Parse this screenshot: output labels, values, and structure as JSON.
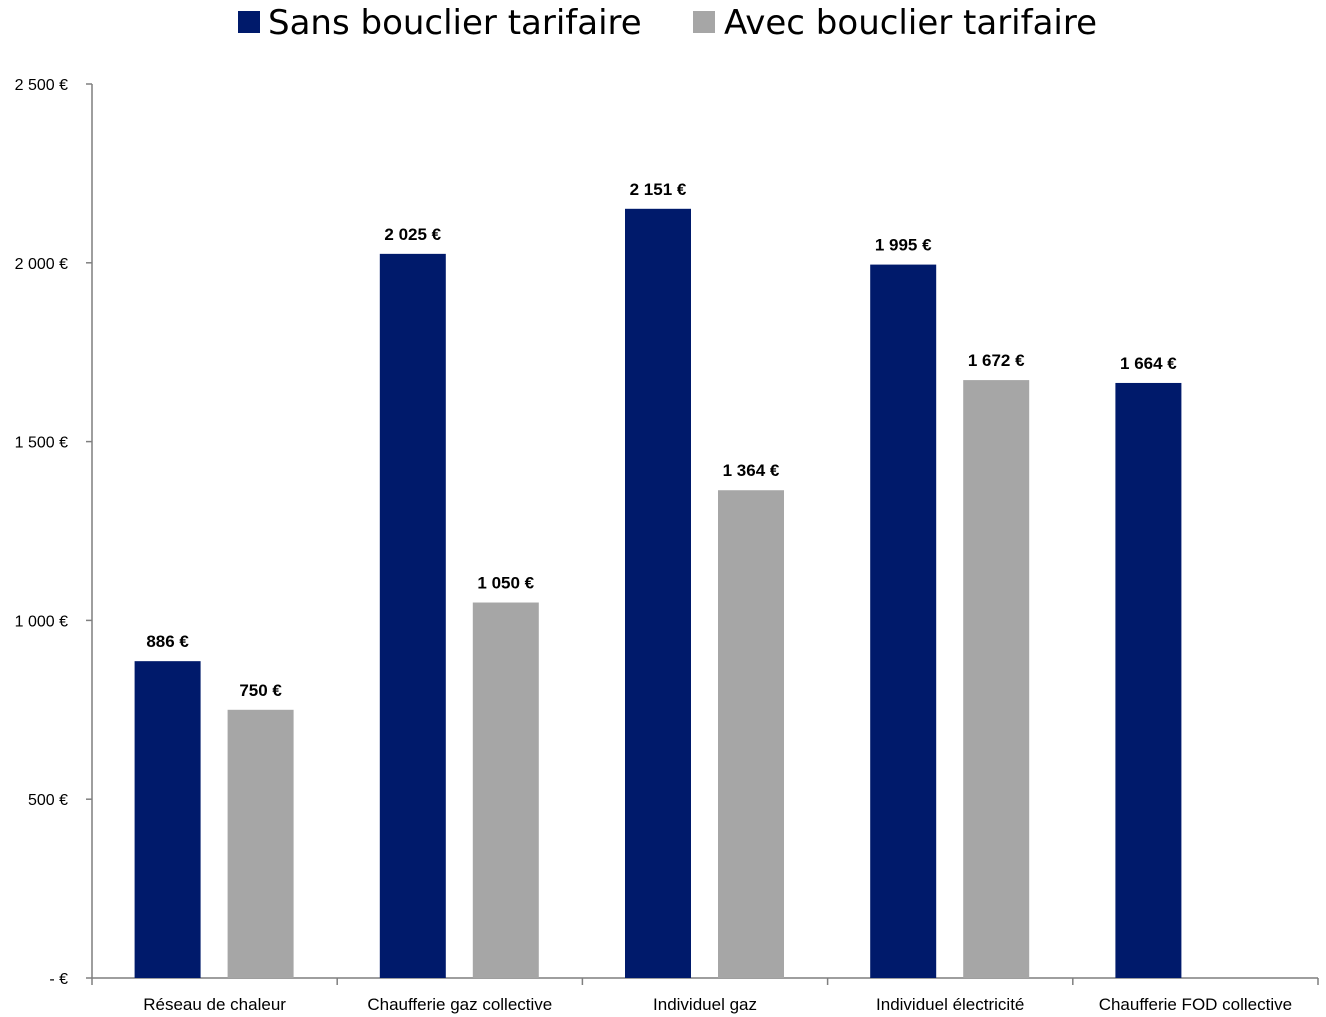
{
  "chart_data": {
    "type": "bar",
    "title": "",
    "xlabel": "",
    "ylabel": "",
    "categories": [
      "Réseau de chaleur",
      "Chaufferie gaz collective",
      "Individuel gaz",
      "Individuel électricité",
      "Chaufferie FOD collective"
    ],
    "series": [
      {
        "name": "Sans bouclier tarifaire",
        "color": "#001a6b",
        "values": [
          886,
          2025,
          2151,
          1995,
          1664
        ],
        "labels": [
          "886 €",
          "2 025 €",
          "2 151 €",
          "1 995 €",
          "1 664 €"
        ]
      },
      {
        "name": "Avec bouclier tarifaire",
        "color": "#a6a6a6",
        "values": [
          750,
          1050,
          1364,
          1672,
          null
        ],
        "labels": [
          "750 €",
          "1 050 €",
          "1 364 €",
          "1 672 €",
          null
        ]
      }
    ],
    "ylim": [
      0,
      2500
    ],
    "yticks": [
      0,
      500,
      1000,
      1500,
      2000,
      2500
    ],
    "ytick_labels": [
      "-  €",
      "500 €",
      "1 000 €",
      "1 500 €",
      "2 000 €",
      "2 500 €"
    ],
    "grid": false,
    "legend_position": "top-center"
  }
}
